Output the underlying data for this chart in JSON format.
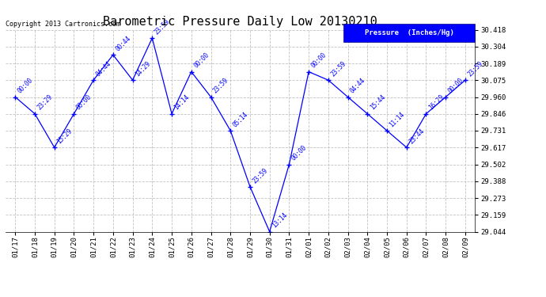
{
  "title": "Barometric Pressure Daily Low 20130210",
  "copyright": "Copyright 2013 Cartronics.com",
  "legend_label": "Pressure  (Inches/Hg)",
  "x_labels": [
    "01/17",
    "01/18",
    "01/19",
    "01/20",
    "01/21",
    "01/22",
    "01/23",
    "01/24",
    "01/25",
    "01/26",
    "01/27",
    "01/28",
    "01/29",
    "01/30",
    "01/31",
    "02/01",
    "02/02",
    "02/03",
    "02/04",
    "02/05",
    "02/06",
    "02/07",
    "02/08",
    "02/09"
  ],
  "y_values": [
    29.96,
    29.846,
    29.617,
    29.846,
    30.075,
    30.247,
    30.075,
    30.361,
    29.846,
    30.132,
    29.96,
    29.731,
    29.35,
    29.044,
    29.502,
    30.132,
    30.075,
    29.96,
    29.846,
    29.731,
    29.617,
    29.846,
    29.96,
    30.075
  ],
  "point_labels": [
    "00:00",
    "23:29",
    "15:29",
    "00:00",
    "04:44",
    "00:44",
    "14:29",
    "23:59",
    "14:14",
    "00:00",
    "23:59",
    "05:14",
    "23:59",
    "13:14",
    "00:00",
    "00:00",
    "23:59",
    "04:44",
    "15:44",
    "11:14",
    "23:44",
    "16:29",
    "00:00",
    "23:59"
  ],
  "ylim_min": 29.044,
  "ylim_max": 30.418,
  "yticks": [
    29.044,
    29.159,
    29.273,
    29.388,
    29.502,
    29.617,
    29.731,
    29.846,
    29.96,
    30.075,
    30.189,
    30.304,
    30.418
  ],
  "line_color": "blue",
  "marker_color": "blue",
  "label_color": "blue",
  "bg_color": "#ffffff",
  "grid_color": "#bbbbbb",
  "title_fontsize": 11,
  "tick_fontsize": 6.5,
  "point_label_fontsize": 5.5,
  "copyright_fontsize": 6.0,
  "legend_fontsize": 6.5
}
